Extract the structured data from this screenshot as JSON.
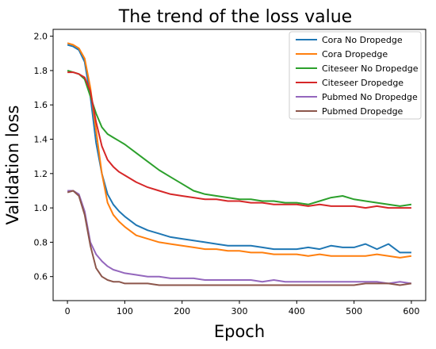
{
  "chart_data": {
    "type": "line",
    "title": "The trend of the loss value",
    "xlabel": "Epoch",
    "ylabel": "Validation loss",
    "xlim": [
      -25,
      625
    ],
    "ylim": [
      0.46,
      2.04
    ],
    "xticks": [
      0,
      100,
      200,
      300,
      400,
      500,
      600
    ],
    "yticks": [
      0.6,
      0.8,
      1.0,
      1.2,
      1.4,
      1.6,
      1.8,
      2.0
    ],
    "xtick_labels": [
      "0",
      "100",
      "200",
      "300",
      "400",
      "500",
      "600"
    ],
    "ytick_labels": [
      "0.6",
      "0.8",
      "1.0",
      "1.2",
      "1.4",
      "1.6",
      "1.8",
      "2.0"
    ],
    "grid": false,
    "legend_position": "top-right",
    "series": [
      {
        "name": "Cora No Dropedge",
        "color": "#1f77b4",
        "x": [
          0,
          10,
          20,
          30,
          40,
          50,
          60,
          70,
          80,
          90,
          100,
          120,
          140,
          160,
          180,
          200,
          220,
          240,
          260,
          280,
          300,
          320,
          340,
          360,
          380,
          400,
          420,
          440,
          460,
          480,
          500,
          520,
          540,
          560,
          580,
          600
        ],
        "y": [
          1.95,
          1.94,
          1.92,
          1.85,
          1.65,
          1.38,
          1.2,
          1.08,
          1.02,
          0.98,
          0.95,
          0.9,
          0.87,
          0.85,
          0.83,
          0.82,
          0.81,
          0.8,
          0.79,
          0.78,
          0.78,
          0.78,
          0.77,
          0.76,
          0.76,
          0.76,
          0.77,
          0.76,
          0.78,
          0.77,
          0.77,
          0.79,
          0.76,
          0.79,
          0.74,
          0.74
        ]
      },
      {
        "name": "Cora Dropedge",
        "color": "#ff7f0e",
        "x": [
          0,
          10,
          20,
          30,
          40,
          50,
          60,
          70,
          80,
          90,
          100,
          120,
          140,
          160,
          180,
          200,
          220,
          240,
          260,
          280,
          300,
          320,
          340,
          360,
          380,
          400,
          420,
          440,
          460,
          480,
          500,
          520,
          540,
          560,
          580,
          600
        ],
        "y": [
          1.96,
          1.95,
          1.93,
          1.87,
          1.7,
          1.45,
          1.2,
          1.03,
          0.96,
          0.92,
          0.89,
          0.84,
          0.82,
          0.8,
          0.79,
          0.78,
          0.77,
          0.76,
          0.76,
          0.75,
          0.75,
          0.74,
          0.74,
          0.73,
          0.73,
          0.73,
          0.72,
          0.73,
          0.72,
          0.72,
          0.72,
          0.72,
          0.73,
          0.72,
          0.71,
          0.72
        ]
      },
      {
        "name": "Citeseer No Dropedge",
        "color": "#2ca02c",
        "x": [
          0,
          10,
          20,
          30,
          40,
          50,
          60,
          70,
          80,
          90,
          100,
          120,
          140,
          160,
          180,
          200,
          220,
          240,
          260,
          280,
          300,
          320,
          340,
          360,
          380,
          400,
          420,
          440,
          460,
          480,
          500,
          520,
          540,
          560,
          580,
          600
        ],
        "y": [
          1.8,
          1.79,
          1.78,
          1.75,
          1.65,
          1.55,
          1.47,
          1.43,
          1.41,
          1.39,
          1.37,
          1.32,
          1.27,
          1.22,
          1.18,
          1.14,
          1.1,
          1.08,
          1.07,
          1.06,
          1.05,
          1.05,
          1.04,
          1.04,
          1.03,
          1.03,
          1.02,
          1.04,
          1.06,
          1.07,
          1.05,
          1.04,
          1.03,
          1.02,
          1.01,
          1.02
        ]
      },
      {
        "name": "Citeseer Dropedge",
        "color": "#d62728",
        "x": [
          0,
          10,
          20,
          30,
          40,
          50,
          60,
          70,
          80,
          90,
          100,
          120,
          140,
          160,
          180,
          200,
          220,
          240,
          260,
          280,
          300,
          320,
          340,
          360,
          380,
          400,
          420,
          440,
          460,
          480,
          500,
          520,
          540,
          560,
          580,
          600
        ],
        "y": [
          1.79,
          1.79,
          1.78,
          1.76,
          1.68,
          1.5,
          1.36,
          1.28,
          1.24,
          1.21,
          1.19,
          1.15,
          1.12,
          1.1,
          1.08,
          1.07,
          1.06,
          1.05,
          1.05,
          1.04,
          1.04,
          1.03,
          1.03,
          1.02,
          1.02,
          1.02,
          1.01,
          1.02,
          1.01,
          1.01,
          1.01,
          1.0,
          1.01,
          1.0,
          1.0,
          1.0
        ]
      },
      {
        "name": "Pubmed No Dropedge",
        "color": "#9467bd",
        "x": [
          0,
          10,
          20,
          30,
          40,
          50,
          60,
          70,
          80,
          90,
          100,
          120,
          140,
          160,
          180,
          200,
          220,
          240,
          260,
          280,
          300,
          320,
          340,
          360,
          380,
          400,
          420,
          440,
          460,
          480,
          500,
          520,
          540,
          560,
          580,
          600
        ],
        "y": [
          1.1,
          1.1,
          1.08,
          0.98,
          0.8,
          0.73,
          0.69,
          0.66,
          0.64,
          0.63,
          0.62,
          0.61,
          0.6,
          0.6,
          0.59,
          0.59,
          0.59,
          0.58,
          0.58,
          0.58,
          0.58,
          0.58,
          0.57,
          0.58,
          0.57,
          0.57,
          0.57,
          0.57,
          0.57,
          0.57,
          0.57,
          0.57,
          0.57,
          0.56,
          0.57,
          0.56
        ]
      },
      {
        "name": "Pubmed Dropedge",
        "color": "#8c564b",
        "x": [
          0,
          10,
          20,
          30,
          40,
          50,
          60,
          70,
          80,
          90,
          100,
          120,
          140,
          160,
          180,
          200,
          220,
          240,
          260,
          280,
          300,
          320,
          340,
          360,
          380,
          400,
          420,
          440,
          460,
          480,
          500,
          520,
          540,
          560,
          580,
          600
        ],
        "y": [
          1.09,
          1.1,
          1.07,
          0.96,
          0.78,
          0.65,
          0.6,
          0.58,
          0.57,
          0.57,
          0.56,
          0.56,
          0.56,
          0.55,
          0.55,
          0.55,
          0.55,
          0.55,
          0.55,
          0.55,
          0.55,
          0.55,
          0.55,
          0.55,
          0.55,
          0.55,
          0.55,
          0.55,
          0.55,
          0.55,
          0.55,
          0.56,
          0.56,
          0.56,
          0.55,
          0.56
        ]
      }
    ]
  }
}
